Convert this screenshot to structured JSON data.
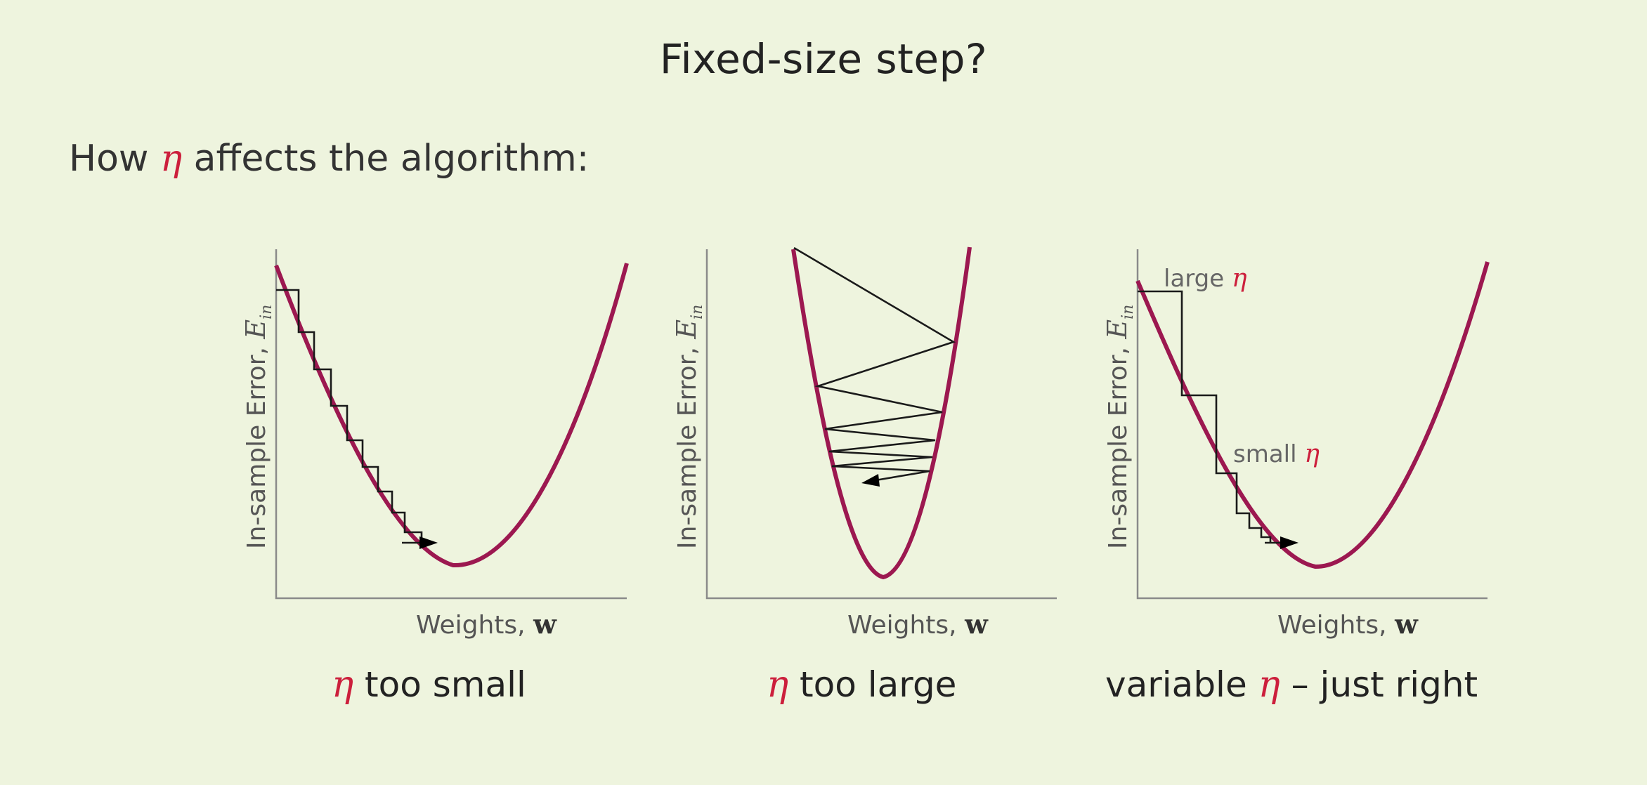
{
  "slide": {
    "title": "Fixed-size step?",
    "intro_before": "How ",
    "intro_symbol": "η",
    "intro_after": " affects the algorithm:"
  },
  "eta_symbol": "η",
  "colors": {
    "background": "#eef4de",
    "curve": "#9c1850",
    "eta": "#cc1f3c",
    "axis": "#8a8a8a",
    "path": "#1a1a1a"
  },
  "panels": [
    {
      "id": "small",
      "ylabel_text": "In-sample Error, ",
      "ylabel_symbol": "E",
      "ylabel_subscript": "in",
      "xlabel_text": "Weights, ",
      "xlabel_symbol": "w",
      "caption_before": "",
      "caption_after": " too small",
      "path_style": "many small steps down the left side of the bowl"
    },
    {
      "id": "large",
      "ylabel_text": "In-sample Error, ",
      "ylabel_symbol": "E",
      "ylabel_subscript": "in",
      "xlabel_text": "Weights, ",
      "xlabel_symbol": "w",
      "caption_before": "",
      "caption_after": " too large",
      "path_style": "zig-zag bouncing between the walls of the bowl"
    },
    {
      "id": "variable",
      "ylabel_text": "In-sample Error, ",
      "ylabel_symbol": "E",
      "ylabel_subscript": "in",
      "xlabel_text": "Weights, ",
      "xlabel_symbol": "w",
      "caption_before": "variable ",
      "caption_after": " – just right",
      "path_style": "large steps first, then shrinking steps",
      "annotations": {
        "large_label": "large ",
        "small_label": "small "
      }
    }
  ]
}
